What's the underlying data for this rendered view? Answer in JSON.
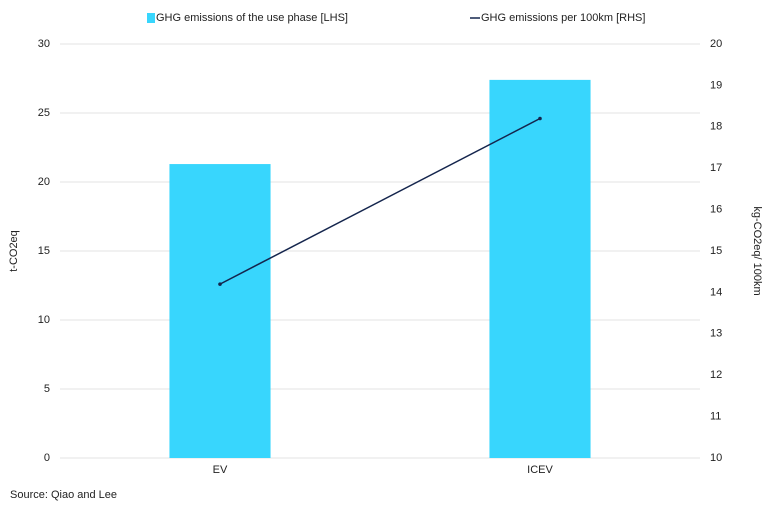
{
  "chart_data": {
    "type": "bar",
    "categories": [
      "EV",
      "ICEV"
    ],
    "series": [
      {
        "name": "GHG emissions of the use phase [LHS]",
        "type": "bar",
        "color": "#38d6fd",
        "values": [
          21.3,
          27.4
        ]
      },
      {
        "name": "GHG emissions per 100km [RHS]",
        "type": "line",
        "axis": "y2",
        "color": "#14254d",
        "values": [
          14.2,
          18.2
        ]
      }
    ],
    "ylabel": "t-CO2eq",
    "y2label": "kg-CO2eq/ 100km",
    "ylim": [
      0,
      30
    ],
    "yticks": [
      0,
      5,
      10,
      15,
      20,
      25,
      30
    ],
    "y2lim": [
      10,
      20
    ],
    "y2ticks": [
      10,
      11,
      12,
      13,
      14,
      15,
      16,
      17,
      18,
      19,
      20
    ],
    "grid": true,
    "source": "Source: Qiao and Lee"
  }
}
